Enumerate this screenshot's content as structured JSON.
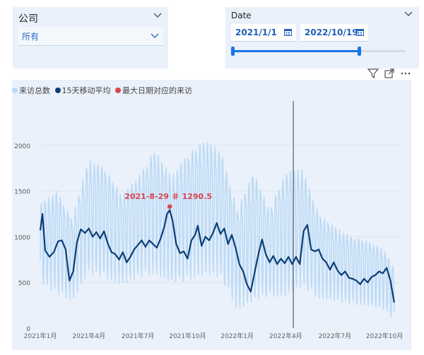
{
  "company_slicer": {
    "title": "公司",
    "selected": "所有"
  },
  "date_slicer": {
    "title": "Date",
    "start": "2021/1/1",
    "end": "2022/10/19",
    "range_fraction": [
      0,
      0.73
    ]
  },
  "toolbar": {
    "icons": [
      "filter-icon",
      "focus-mode-icon",
      "more-options-icon"
    ]
  },
  "colors": {
    "card_bg": "#eaf1fb",
    "total_visits": "#bcdaf5",
    "moving_avg": "#0b3e75",
    "max_point": "#d64550",
    "accent": "#1a73e8"
  },
  "chart_data": {
    "type": "line",
    "legend": [
      "来访总数",
      "15天移动平均",
      "最大日期对应的来访"
    ],
    "ylim": [
      0,
      2500
    ],
    "yticks": [
      0,
      500,
      1000,
      1500,
      2000
    ],
    "xlim": [
      "2021-01-01",
      "2022-10-31"
    ],
    "xticks": [
      {
        "date": "2021-01-01",
        "label": "2021年1月"
      },
      {
        "date": "2021-04-01",
        "label": "2021年4月"
      },
      {
        "date": "2021-07-01",
        "label": "2021年7月"
      },
      {
        "date": "2021-10-01",
        "label": "2021年10月"
      },
      {
        "date": "2022-01-01",
        "label": "2022年1月"
      },
      {
        "date": "2022-04-01",
        "label": "2022年4月"
      },
      {
        "date": "2022-07-01",
        "label": "2022年7月"
      },
      {
        "date": "2022-10-01",
        "label": "2022年10月"
      }
    ],
    "annotation": {
      "date": "2021-08-29",
      "value": 1290.5,
      "label": "2021-8-29 ＃ 1290.5"
    },
    "reference_line": "2022-04-15",
    "series": [
      {
        "name": "15天移动平均",
        "points": [
          [
            "2021-01-01",
            1070
          ],
          [
            "2021-01-05",
            1250
          ],
          [
            "2021-01-10",
            850
          ],
          [
            "2021-01-18",
            780
          ],
          [
            "2021-01-26",
            830
          ],
          [
            "2021-02-03",
            950
          ],
          [
            "2021-02-10",
            960
          ],
          [
            "2021-02-17",
            860
          ],
          [
            "2021-02-24",
            520
          ],
          [
            "2021-03-03",
            620
          ],
          [
            "2021-03-10",
            940
          ],
          [
            "2021-03-17",
            1080
          ],
          [
            "2021-03-25",
            1040
          ],
          [
            "2021-04-01",
            1090
          ],
          [
            "2021-04-08",
            1000
          ],
          [
            "2021-04-15",
            1050
          ],
          [
            "2021-04-22",
            980
          ],
          [
            "2021-04-29",
            1060
          ],
          [
            "2021-05-06",
            930
          ],
          [
            "2021-05-13",
            830
          ],
          [
            "2021-05-20",
            810
          ],
          [
            "2021-05-27",
            750
          ],
          [
            "2021-06-03",
            830
          ],
          [
            "2021-06-10",
            720
          ],
          [
            "2021-06-17",
            780
          ],
          [
            "2021-06-24",
            860
          ],
          [
            "2021-07-01",
            910
          ],
          [
            "2021-07-08",
            960
          ],
          [
            "2021-07-15",
            890
          ],
          [
            "2021-07-22",
            960
          ],
          [
            "2021-07-29",
            920
          ],
          [
            "2021-08-05",
            880
          ],
          [
            "2021-08-12",
            980
          ],
          [
            "2021-08-19",
            1110
          ],
          [
            "2021-08-24",
            1250
          ],
          [
            "2021-08-29",
            1290
          ],
          [
            "2021-09-03",
            1180
          ],
          [
            "2021-09-10",
            920
          ],
          [
            "2021-09-17",
            820
          ],
          [
            "2021-09-24",
            840
          ],
          [
            "2021-10-01",
            760
          ],
          [
            "2021-10-08",
            960
          ],
          [
            "2021-10-15",
            1020
          ],
          [
            "2021-10-20",
            1120
          ],
          [
            "2021-10-27",
            900
          ],
          [
            "2021-11-03",
            1000
          ],
          [
            "2021-11-10",
            960
          ],
          [
            "2021-11-17",
            1040
          ],
          [
            "2021-11-24",
            1150
          ],
          [
            "2021-12-01",
            1030
          ],
          [
            "2021-12-08",
            1090
          ],
          [
            "2021-12-15",
            920
          ],
          [
            "2021-12-22",
            1020
          ],
          [
            "2021-12-29",
            880
          ],
          [
            "2022-01-05",
            700
          ],
          [
            "2022-01-12",
            620
          ],
          [
            "2022-01-19",
            480
          ],
          [
            "2022-01-26",
            400
          ],
          [
            "2022-02-02",
            600
          ],
          [
            "2022-02-09",
            800
          ],
          [
            "2022-02-16",
            970
          ],
          [
            "2022-02-23",
            810
          ],
          [
            "2022-03-02",
            720
          ],
          [
            "2022-03-09",
            790
          ],
          [
            "2022-03-16",
            700
          ],
          [
            "2022-03-23",
            760
          ],
          [
            "2022-03-30",
            710
          ],
          [
            "2022-04-06",
            780
          ],
          [
            "2022-04-13",
            700
          ],
          [
            "2022-04-20",
            780
          ],
          [
            "2022-04-27",
            700
          ],
          [
            "2022-05-04",
            1060
          ],
          [
            "2022-05-11",
            1130
          ],
          [
            "2022-05-18",
            860
          ],
          [
            "2022-05-25",
            840
          ],
          [
            "2022-06-01",
            860
          ],
          [
            "2022-06-08",
            760
          ],
          [
            "2022-06-15",
            720
          ],
          [
            "2022-06-22",
            640
          ],
          [
            "2022-06-29",
            720
          ],
          [
            "2022-07-06",
            630
          ],
          [
            "2022-07-13",
            580
          ],
          [
            "2022-07-20",
            620
          ],
          [
            "2022-07-27",
            550
          ],
          [
            "2022-08-03",
            540
          ],
          [
            "2022-08-10",
            520
          ],
          [
            "2022-08-17",
            480
          ],
          [
            "2022-08-24",
            540
          ],
          [
            "2022-08-31",
            500
          ],
          [
            "2022-09-07",
            560
          ],
          [
            "2022-09-14",
            580
          ],
          [
            "2022-09-21",
            620
          ],
          [
            "2022-09-28",
            600
          ],
          [
            "2022-10-05",
            660
          ],
          [
            "2022-10-12",
            520
          ],
          [
            "2022-10-19",
            280
          ]
        ]
      },
      {
        "name": "来访总数",
        "weekday_highs": [
          [
            "2021-01-01",
            1350
          ],
          [
            "2021-02-01",
            1500
          ],
          [
            "2021-03-01",
            1200
          ],
          [
            "2021-04-01",
            1850
          ],
          [
            "2021-05-01",
            1750
          ],
          [
            "2021-06-01",
            1450
          ],
          [
            "2021-07-01",
            1650
          ],
          [
            "2021-08-01",
            1950
          ],
          [
            "2021-09-01",
            1650
          ],
          [
            "2021-10-01",
            1900
          ],
          [
            "2021-11-01",
            2050
          ],
          [
            "2021-12-01",
            1950
          ],
          [
            "2022-01-01",
            1300
          ],
          [
            "2022-02-01",
            1700
          ],
          [
            "2022-03-01",
            1300
          ],
          [
            "2022-04-01",
            1700
          ],
          [
            "2022-05-01",
            1750
          ],
          [
            "2022-06-01",
            1250
          ],
          [
            "2022-07-01",
            1100
          ],
          [
            "2022-08-01",
            1000
          ],
          [
            "2022-09-01",
            950
          ],
          [
            "2022-10-01",
            850
          ],
          [
            "2022-10-19",
            650
          ]
        ],
        "weekend_lows": [
          [
            "2021-01-01",
            500
          ],
          [
            "2021-02-01",
            380
          ],
          [
            "2021-03-01",
            300
          ],
          [
            "2021-04-01",
            600
          ],
          [
            "2021-05-01",
            550
          ],
          [
            "2021-06-01",
            480
          ],
          [
            "2021-07-01",
            550
          ],
          [
            "2021-08-01",
            600
          ],
          [
            "2021-09-01",
            500
          ],
          [
            "2021-10-01",
            520
          ],
          [
            "2021-11-01",
            600
          ],
          [
            "2021-12-01",
            560
          ],
          [
            "2022-01-01",
            200
          ],
          [
            "2022-02-01",
            300
          ],
          [
            "2022-03-01",
            350
          ],
          [
            "2022-04-01",
            350
          ],
          [
            "2022-05-01",
            450
          ],
          [
            "2022-06-01",
            330
          ],
          [
            "2022-07-01",
            300
          ],
          [
            "2022-08-01",
            260
          ],
          [
            "2022-09-01",
            250
          ],
          [
            "2022-10-01",
            200
          ],
          [
            "2022-10-19",
            80
          ]
        ]
      }
    ]
  }
}
